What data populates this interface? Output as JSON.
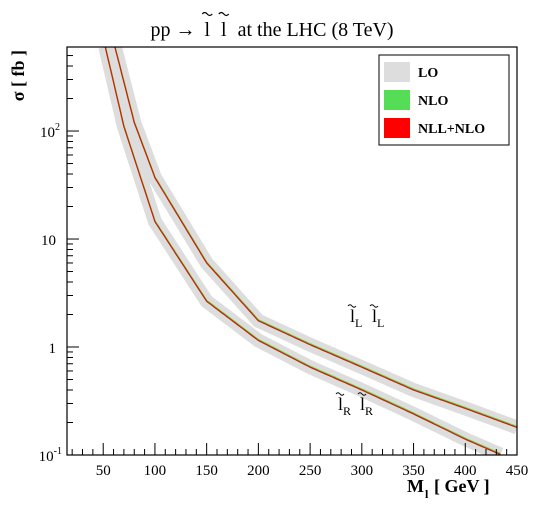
{
  "chart_data": {
    "type": "line",
    "title": {
      "prefix": "pp →",
      "pair_symbol": "l",
      "suffix": "at the LHC (8 TeV)"
    },
    "ylabel": "σ [ fb ]",
    "xlabel": {
      "symbol": "M",
      "subscript": "l",
      "unit": "[ GeV ]"
    },
    "x_axis": {
      "range": [
        15,
        450
      ],
      "ticks": [
        50,
        100,
        150,
        200,
        250,
        300,
        350,
        400,
        450
      ],
      "tick_labels": [
        "50",
        "100",
        "150",
        "200",
        "250",
        "300",
        "350",
        "400",
        "450"
      ]
    },
    "y_axis": {
      "scale": "log",
      "range": [
        0.1,
        600
      ],
      "ticks": [
        0.1,
        1,
        10,
        100
      ],
      "tick_labels": [
        {
          "base": "10",
          "exp": "-1"
        },
        {
          "base": "1",
          "exp": ""
        },
        {
          "base": "10",
          "exp": ""
        },
        {
          "base": "10",
          "exp": "2"
        }
      ]
    },
    "grid": false,
    "legend": {
      "position": "top-right",
      "entries": [
        {
          "label": "LO",
          "color": "#dddddd"
        },
        {
          "label": "NLO",
          "color": "#55dd55"
        },
        {
          "label": "NLL+NLO",
          "color": "#ff0000"
        }
      ]
    },
    "series": [
      {
        "pair_label": {
          "symbol": "l",
          "sub": "L"
        },
        "band_color": "#dddddd",
        "line_colors": [
          "#55dd55",
          "#cc2200"
        ],
        "x": [
          60,
          80,
          100,
          150,
          200,
          250,
          300,
          350,
          400,
          450
        ],
        "y": [
          670,
          120,
          37,
          6.0,
          1.75,
          1.05,
          0.65,
          0.4,
          0.27,
          0.18
        ]
      },
      {
        "pair_label": {
          "symbol": "l",
          "sub": "R"
        },
        "band_color": "#dddddd",
        "line_colors": [
          "#55dd55",
          "#cc2200"
        ],
        "x": [
          52,
          70,
          100,
          150,
          200,
          250,
          300,
          350,
          400,
          435
        ],
        "y": [
          600,
          110,
          14.5,
          2.65,
          1.15,
          0.65,
          0.4,
          0.24,
          0.14,
          0.1
        ]
      }
    ]
  }
}
